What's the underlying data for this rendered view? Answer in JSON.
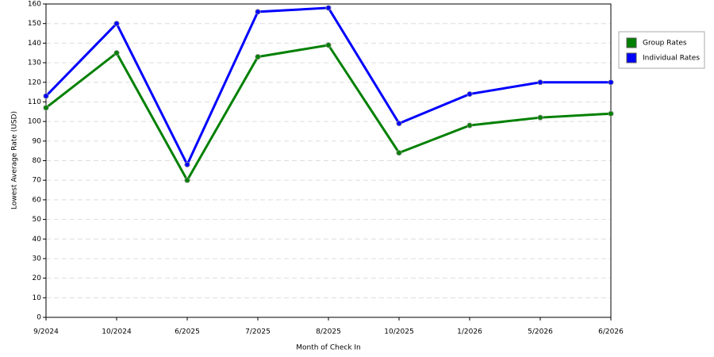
{
  "chart_data": {
    "type": "line",
    "x_label": "Month of Check In",
    "y_label": "Lowest Average Rate (USD)",
    "categories": [
      "9/2024",
      "10/2024",
      "6/2025",
      "7/2025",
      "8/2025",
      "10/2025",
      "1/2026",
      "5/2026",
      "6/2026"
    ],
    "series": [
      {
        "name": "Group Rates",
        "color": "#008000",
        "values": [
          107,
          135,
          70,
          133,
          139,
          84,
          98,
          102,
          104
        ]
      },
      {
        "name": "Individual Rates",
        "color": "#0000ff",
        "values": [
          113,
          150,
          78,
          156,
          158,
          99,
          114,
          120,
          120
        ]
      }
    ],
    "ylim": [
      0,
      160
    ],
    "yticks": [
      0,
      10,
      20,
      30,
      40,
      50,
      60,
      70,
      80,
      90,
      100,
      110,
      120,
      130,
      140,
      150,
      160
    ],
    "grid": true,
    "legend": "right"
  }
}
